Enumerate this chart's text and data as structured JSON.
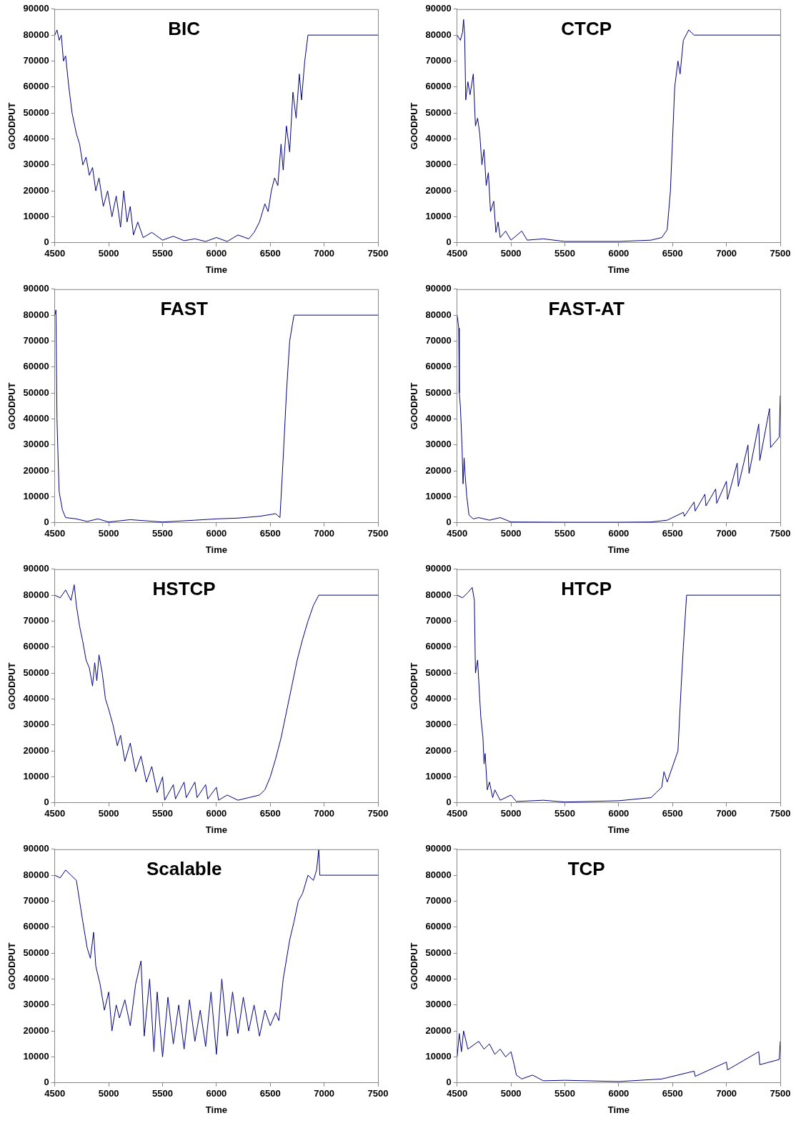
{
  "chart_data": [
    {
      "type": "line",
      "title": "BIC",
      "xlabel": "Time",
      "ylabel": "GOODPUT",
      "xlim": [
        4500,
        7500
      ],
      "xticks": [
        4500,
        5000,
        5500,
        6000,
        6500,
        7000,
        7500
      ],
      "ylim": [
        0,
        90000
      ],
      "yticks": [
        0,
        10000,
        20000,
        30000,
        40000,
        50000,
        60000,
        70000,
        80000,
        90000
      ],
      "grid": false,
      "legend": false,
      "marker": "none",
      "series": [
        {
          "color": "#000080",
          "x": [
            4500,
            4520,
            4540,
            4560,
            4580,
            4600,
            4630,
            4660,
            4700,
            4730,
            4760,
            4790,
            4820,
            4850,
            4880,
            4910,
            4950,
            4990,
            5030,
            5070,
            5110,
            5140,
            5170,
            5200,
            5230,
            5270,
            5320,
            5400,
            5500,
            5600,
            5700,
            5800,
            5900,
            6000,
            6100,
            6200,
            6300,
            6350,
            6400,
            6450,
            6480,
            6510,
            6540,
            6570,
            6600,
            6620,
            6650,
            6680,
            6710,
            6740,
            6770,
            6790,
            6820,
            6850,
            7500
          ],
          "values": [
            80000,
            82000,
            78000,
            80000,
            70000,
            72000,
            60000,
            50000,
            42000,
            38000,
            30000,
            33000,
            26000,
            29000,
            20000,
            25000,
            14000,
            20000,
            10000,
            18000,
            6000,
            20000,
            8000,
            14000,
            3000,
            8000,
            2000,
            4000,
            1000,
            2500,
            800,
            1500,
            500,
            2000,
            500,
            3000,
            1500,
            4000,
            8000,
            15000,
            12000,
            20000,
            25000,
            22000,
            38000,
            28000,
            45000,
            35000,
            58000,
            48000,
            65000,
            55000,
            70000,
            80000,
            80000
          ]
        }
      ]
    },
    {
      "type": "line",
      "title": "CTCP",
      "xlabel": "Time",
      "ylabel": "GOODPUT",
      "xlim": [
        4500,
        7500
      ],
      "xticks": [
        4500,
        5000,
        5500,
        6000,
        6500,
        7000,
        7500
      ],
      "ylim": [
        0,
        90000
      ],
      "yticks": [
        0,
        10000,
        20000,
        30000,
        40000,
        50000,
        60000,
        70000,
        80000,
        90000
      ],
      "grid": false,
      "legend": false,
      "marker": "none",
      "series": [
        {
          "color": "#000080",
          "x": [
            4500,
            4530,
            4550,
            4560,
            4570,
            4580,
            4600,
            4620,
            4650,
            4670,
            4690,
            4710,
            4730,
            4750,
            4770,
            4790,
            4810,
            4840,
            4860,
            4880,
            4900,
            4950,
            5000,
            5100,
            5150,
            5300,
            5500,
            6000,
            6300,
            6400,
            6450,
            6480,
            6500,
            6520,
            6550,
            6570,
            6600,
            6650,
            6700,
            7500
          ],
          "values": [
            80000,
            78000,
            81000,
            86000,
            80000,
            55000,
            62000,
            57000,
            65000,
            45000,
            48000,
            42000,
            30000,
            36000,
            22000,
            27000,
            12000,
            16000,
            4000,
            8000,
            2000,
            4500,
            1000,
            4500,
            1000,
            1500,
            500,
            500,
            1000,
            2000,
            5000,
            20000,
            40000,
            60000,
            70000,
            65000,
            78000,
            82000,
            80000,
            80000
          ]
        }
      ]
    },
    {
      "type": "line",
      "title": "FAST",
      "xlabel": "Time",
      "ylabel": "GOODPUT",
      "xlim": [
        4500,
        7500
      ],
      "xticks": [
        4500,
        5000,
        5500,
        6000,
        6500,
        7000,
        7500
      ],
      "ylim": [
        0,
        90000
      ],
      "yticks": [
        0,
        10000,
        20000,
        30000,
        40000,
        50000,
        60000,
        70000,
        80000,
        90000
      ],
      "grid": false,
      "legend": false,
      "marker": "none",
      "series": [
        {
          "color": "#000080",
          "x": [
            4500,
            4510,
            4520,
            4530,
            4540,
            4570,
            4600,
            4700,
            4800,
            4900,
            5000,
            5200,
            5500,
            5800,
            6000,
            6200,
            6400,
            6550,
            6590,
            6620,
            6650,
            6680,
            6720,
            7500
          ],
          "values": [
            80000,
            82000,
            40000,
            25000,
            12000,
            5000,
            2000,
            1500,
            500,
            1500,
            300,
            1200,
            300,
            1000,
            1500,
            1800,
            2500,
            3500,
            2000,
            25000,
            50000,
            70000,
            80000,
            80000
          ]
        }
      ]
    },
    {
      "type": "line",
      "title": "FAST-AT",
      "xlabel": "Time",
      "ylabel": "GOODPUT",
      "xlim": [
        4500,
        7500
      ],
      "xticks": [
        4500,
        5000,
        5500,
        6000,
        6500,
        7000,
        7500
      ],
      "ylim": [
        0,
        90000
      ],
      "yticks": [
        0,
        10000,
        20000,
        30000,
        40000,
        50000,
        60000,
        70000,
        80000,
        90000
      ],
      "grid": false,
      "legend": false,
      "marker": "none",
      "series": [
        {
          "color": "#000080",
          "x": [
            4500,
            4515,
            4520,
            4530,
            4545,
            4555,
            4565,
            4575,
            4590,
            4610,
            4650,
            4700,
            4800,
            4900,
            5000,
            5500,
            6000,
            6300,
            6450,
            6600,
            6610,
            6700,
            6710,
            6800,
            6810,
            6900,
            6910,
            7000,
            7010,
            7100,
            7110,
            7200,
            7210,
            7300,
            7310,
            7400,
            7410,
            7490,
            7500
          ],
          "values": [
            80000,
            75000,
            50000,
            45000,
            30000,
            15000,
            25000,
            18000,
            10000,
            3000,
            1500,
            2000,
            1000,
            2000,
            300,
            200,
            200,
            300,
            1000,
            4000,
            2500,
            8000,
            4500,
            11000,
            6500,
            13000,
            7500,
            16000,
            9000,
            23000,
            14000,
            30000,
            19000,
            38000,
            24000,
            44000,
            29000,
            33000,
            49000
          ]
        }
      ]
    },
    {
      "type": "line",
      "title": "HSTCP",
      "xlabel": "Time",
      "ylabel": "GOODPUT",
      "xlim": [
        4500,
        7500
      ],
      "xticks": [
        4500,
        5000,
        5500,
        6000,
        6500,
        7000,
        7500
      ],
      "ylim": [
        0,
        90000
      ],
      "yticks": [
        0,
        10000,
        20000,
        30000,
        40000,
        50000,
        60000,
        70000,
        80000,
        90000
      ],
      "grid": false,
      "legend": false,
      "marker": "none",
      "series": [
        {
          "color": "#000080",
          "x": [
            4500,
            4550,
            4600,
            4650,
            4680,
            4700,
            4730,
            4760,
            4790,
            4820,
            4850,
            4870,
            4890,
            4910,
            4940,
            4970,
            5000,
            5040,
            5080,
            5110,
            5150,
            5200,
            5250,
            5300,
            5350,
            5400,
            5450,
            5500,
            5520,
            5600,
            5620,
            5700,
            5720,
            5800,
            5820,
            5900,
            5920,
            6000,
            6020,
            6100,
            6200,
            6300,
            6400,
            6450,
            6500,
            6550,
            6600,
            6650,
            6700,
            6750,
            6800,
            6850,
            6900,
            6950,
            7500
          ],
          "values": [
            80000,
            79000,
            82000,
            78000,
            84000,
            76000,
            68000,
            62000,
            55000,
            52000,
            45000,
            54000,
            47000,
            57000,
            50000,
            40000,
            36000,
            30000,
            22000,
            26000,
            16000,
            23000,
            12000,
            18000,
            8000,
            14000,
            4000,
            10000,
            1000,
            7000,
            1500,
            8000,
            2000,
            8000,
            2000,
            7000,
            1500,
            6000,
            1000,
            3000,
            1000,
            2000,
            3000,
            5000,
            10000,
            17000,
            25000,
            35000,
            45000,
            55000,
            63000,
            70000,
            76000,
            80000,
            80000
          ]
        }
      ]
    },
    {
      "type": "line",
      "title": "HTCP",
      "xlabel": "Time",
      "ylabel": "GOODPUT",
      "xlim": [
        4500,
        7500
      ],
      "xticks": [
        4500,
        5000,
        5500,
        6000,
        6500,
        7000,
        7500
      ],
      "ylim": [
        0,
        90000
      ],
      "yticks": [
        0,
        10000,
        20000,
        30000,
        40000,
        50000,
        60000,
        70000,
        80000,
        90000
      ],
      "grid": false,
      "legend": false,
      "marker": "none",
      "series": [
        {
          "color": "#000080",
          "x": [
            4500,
            4550,
            4600,
            4640,
            4660,
            4670,
            4690,
            4710,
            4720,
            4740,
            4750,
            4760,
            4780,
            4800,
            4830,
            4850,
            4900,
            5000,
            5050,
            5300,
            5500,
            6000,
            6300,
            6350,
            6400,
            6420,
            6450,
            6500,
            6550,
            6580,
            6600,
            6630,
            7500
          ],
          "values": [
            80000,
            79000,
            81000,
            83000,
            78000,
            50000,
            55000,
            40000,
            33000,
            25000,
            15000,
            19000,
            5000,
            8000,
            2000,
            5000,
            1000,
            3000,
            500,
            1000,
            300,
            800,
            2000,
            4000,
            6000,
            12000,
            8000,
            14000,
            20000,
            45000,
            60000,
            80000,
            80000
          ]
        }
      ]
    },
    {
      "type": "line",
      "title": "Scalable",
      "xlabel": "Time",
      "ylabel": "GOODPUT",
      "xlim": [
        4500,
        7500
      ],
      "xticks": [
        4500,
        5000,
        5500,
        6000,
        6500,
        7000,
        7500
      ],
      "ylim": [
        0,
        90000
      ],
      "yticks": [
        0,
        10000,
        20000,
        30000,
        40000,
        50000,
        60000,
        70000,
        80000,
        90000
      ],
      "grid": false,
      "legend": false,
      "marker": "none",
      "series": [
        {
          "color": "#000080",
          "x": [
            4500,
            4550,
            4600,
            4650,
            4700,
            4730,
            4760,
            4800,
            4830,
            4860,
            4880,
            4920,
            4960,
            5000,
            5030,
            5070,
            5100,
            5150,
            5200,
            5250,
            5300,
            5330,
            5380,
            5420,
            5450,
            5500,
            5550,
            5600,
            5650,
            5700,
            5750,
            5800,
            5850,
            5900,
            5950,
            6000,
            6050,
            6100,
            6150,
            6200,
            6250,
            6300,
            6350,
            6400,
            6450,
            6500,
            6550,
            6580,
            6620,
            6680,
            6720,
            6760,
            6800,
            6850,
            6900,
            6930,
            6950,
            6960,
            7500
          ],
          "values": [
            80000,
            79000,
            82000,
            80000,
            78000,
            70000,
            62000,
            52000,
            48000,
            58000,
            45000,
            38000,
            28000,
            35000,
            20000,
            30000,
            25000,
            32000,
            22000,
            38000,
            47000,
            18000,
            40000,
            12000,
            35000,
            10000,
            33000,
            15000,
            30000,
            13000,
            32000,
            16000,
            28000,
            14000,
            35000,
            11000,
            40000,
            18000,
            35000,
            19000,
            33000,
            20000,
            30000,
            18000,
            28000,
            22000,
            27000,
            24000,
            40000,
            55000,
            62000,
            70000,
            73000,
            80000,
            78000,
            82000,
            90000,
            80000,
            80000
          ]
        }
      ]
    },
    {
      "type": "line",
      "title": "TCP",
      "xlabel": "Time",
      "ylabel": "GOODPUT",
      "xlim": [
        4500,
        7500
      ],
      "xticks": [
        4500,
        5000,
        5500,
        6000,
        6500,
        7000,
        7500
      ],
      "ylim": [
        0,
        90000
      ],
      "yticks": [
        0,
        10000,
        20000,
        30000,
        40000,
        50000,
        60000,
        70000,
        80000,
        90000
      ],
      "grid": false,
      "legend": false,
      "marker": "none",
      "series": [
        {
          "color": "#000080",
          "x": [
            4500,
            4520,
            4540,
            4560,
            4600,
            4700,
            4750,
            4800,
            4850,
            4900,
            4950,
            5000,
            5030,
            5050,
            5100,
            5200,
            5300,
            5500,
            6000,
            6200,
            6400,
            6450,
            6700,
            6710,
            7000,
            7010,
            7300,
            7310,
            7490,
            7500
          ],
          "values": [
            10000,
            19000,
            12000,
            20000,
            13000,
            16000,
            13000,
            15000,
            11000,
            13000,
            10000,
            12000,
            7000,
            3000,
            1500,
            3000,
            800,
            1000,
            500,
            1000,
            1500,
            2000,
            4500,
            2500,
            8000,
            5000,
            12000,
            7000,
            9000,
            16000
          ]
        }
      ]
    }
  ]
}
